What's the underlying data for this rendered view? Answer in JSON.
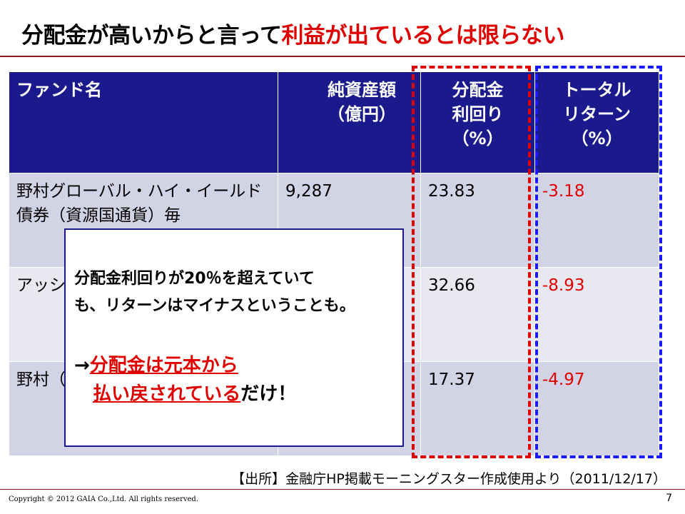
{
  "title": {
    "part1": "分配金が高いからと言って",
    "part2": "利益が出ているとは限らない"
  },
  "table": {
    "headers": {
      "name": "ファンド名",
      "assets_line1": "純資産額",
      "assets_line2": "（億円）",
      "yield_line1": "分配金",
      "yield_line2": "利回り",
      "yield_line3": "（%）",
      "return_line1": "トータル",
      "return_line2": "リターン",
      "return_line3": "（%）"
    },
    "rows": [
      {
        "name": "野村グローバル・ハイ・イールド債券（資源国通貨）毎",
        "assets": "9,287",
        "yield": "23.83",
        "return": "-3.18"
      },
      {
        "name": "アッシ分法",
        "assets": "",
        "yield": "32.66",
        "return": "-8.93"
      },
      {
        "name": "野村（資源",
        "assets": "",
        "yield": "17.37",
        "return": "-4.97"
      }
    ]
  },
  "callout": {
    "line1": "分配金利回りが20％を超えていて",
    "line2": "も、リターンはマイナスということも。",
    "arrow": "→",
    "highlight1": "分配金は元本から",
    "highlight2": "払い戻されている",
    "tail": "だけ！"
  },
  "source": "【出所】金融庁HP掲載モーニングスター作成使用より（2011/12/17）",
  "copyright": "Copyright © 2012 GAIA Co.,Ltd. All rights reserved.",
  "page_number": "7",
  "colors": {
    "header_bg": "#1a1a8c",
    "row_bg": "#d3d3e6",
    "accent_red": "#e00000",
    "dash_blue": "#1a1aff"
  }
}
